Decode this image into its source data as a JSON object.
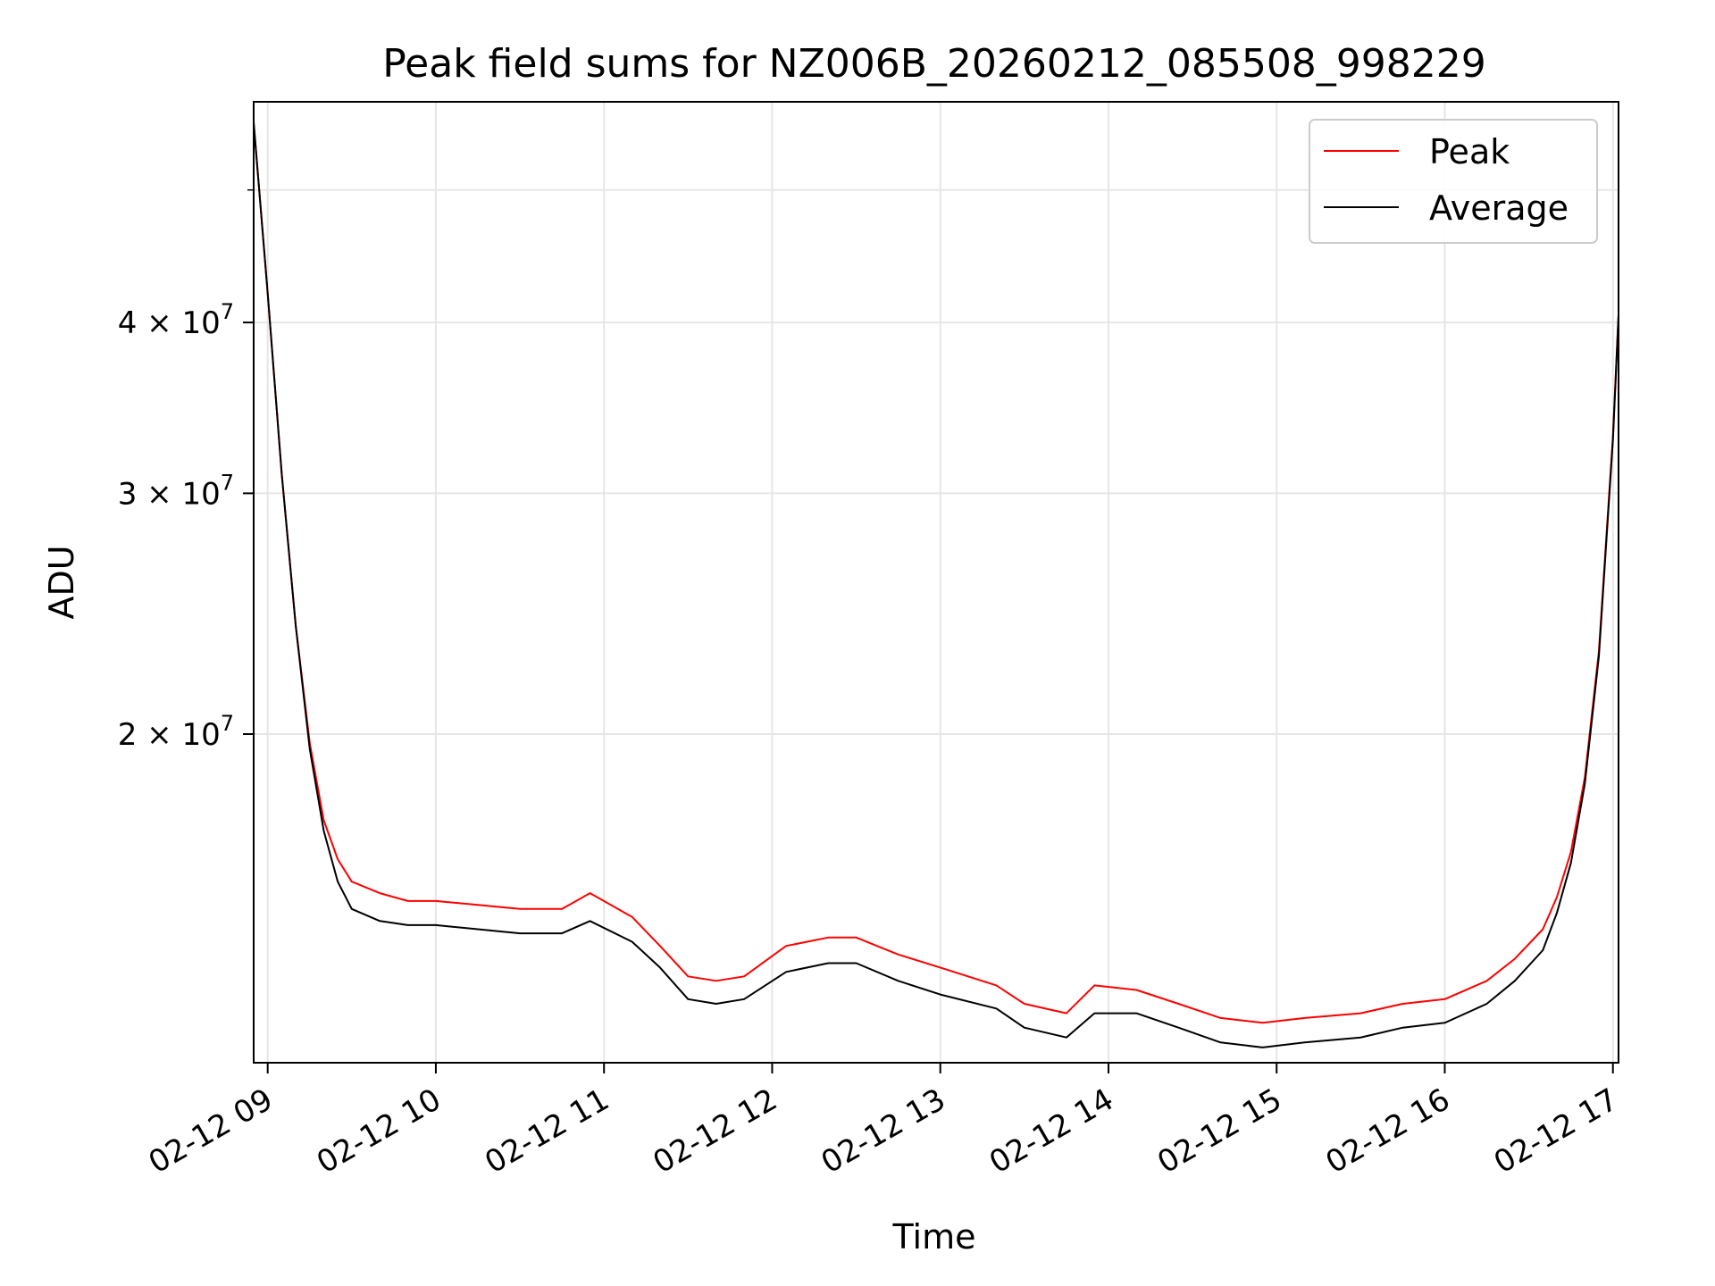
{
  "chart_data": {
    "type": "line",
    "title": "Peak field sums for NZ006B_20260212_085508_998229",
    "xlabel": "Time",
    "ylabel": "ADU",
    "x_type": "datetime",
    "xlim": [
      "2026-02-12 08:55",
      "2026-02-12 17:02"
    ],
    "y_scale": "log",
    "ylim": [
      11500000,
      58000000
    ],
    "x_ticks": [
      {
        "value": "2026-02-12 09:00",
        "label": "02-12 09"
      },
      {
        "value": "2026-02-12 10:00",
        "label": "02-12 10"
      },
      {
        "value": "2026-02-12 11:00",
        "label": "02-12 11"
      },
      {
        "value": "2026-02-12 12:00",
        "label": "02-12 12"
      },
      {
        "value": "2026-02-12 13:00",
        "label": "02-12 13"
      },
      {
        "value": "2026-02-12 14:00",
        "label": "02-12 14"
      },
      {
        "value": "2026-02-12 15:00",
        "label": "02-12 15"
      },
      {
        "value": "2026-02-12 16:00",
        "label": "02-12 16"
      },
      {
        "value": "2026-02-12 17:00",
        "label": "02-12 17"
      }
    ],
    "y_ticks": [
      {
        "value": 20000000,
        "mantissa": "2",
        "base": "10",
        "exp": "7"
      },
      {
        "value": 30000000,
        "mantissa": "3",
        "base": "10",
        "exp": "7"
      },
      {
        "value": 40000000,
        "mantissa": "4",
        "base": "10",
        "exp": "7"
      }
    ],
    "y_minor_ticks": [
      50000000
    ],
    "grid": true,
    "legend_position": "top-right",
    "series": [
      {
        "name": "Peak",
        "color": "#ff0000",
        "x": [
          "2026-02-12 08:55",
          "2026-02-12 09:00",
          "2026-02-12 09:05",
          "2026-02-12 09:10",
          "2026-02-12 09:15",
          "2026-02-12 09:20",
          "2026-02-12 09:25",
          "2026-02-12 09:30",
          "2026-02-12 09:40",
          "2026-02-12 09:50",
          "2026-02-12 10:00",
          "2026-02-12 10:15",
          "2026-02-12 10:30",
          "2026-02-12 10:45",
          "2026-02-12 10:55",
          "2026-02-12 11:10",
          "2026-02-12 11:20",
          "2026-02-12 11:30",
          "2026-02-12 11:40",
          "2026-02-12 11:50",
          "2026-02-12 12:05",
          "2026-02-12 12:20",
          "2026-02-12 12:30",
          "2026-02-12 12:45",
          "2026-02-12 13:00",
          "2026-02-12 13:20",
          "2026-02-12 13:30",
          "2026-02-12 13:45",
          "2026-02-12 13:55",
          "2026-02-12 14:10",
          "2026-02-12 14:25",
          "2026-02-12 14:40",
          "2026-02-12 14:55",
          "2026-02-12 15:10",
          "2026-02-12 15:30",
          "2026-02-12 15:45",
          "2026-02-12 16:00",
          "2026-02-12 16:15",
          "2026-02-12 16:25",
          "2026-02-12 16:35",
          "2026-02-12 16:40",
          "2026-02-12 16:45",
          "2026-02-12 16:50",
          "2026-02-12 16:55",
          "2026-02-12 17:00",
          "2026-02-12 17:02"
        ],
        "y": [
          56000000,
          42000000,
          31000000,
          24000000,
          19700000,
          17300000,
          16200000,
          15600000,
          15300000,
          15100000,
          15100000,
          15000000,
          14900000,
          14900000,
          15300000,
          14700000,
          14000000,
          13300000,
          13200000,
          13300000,
          14000000,
          14200000,
          14200000,
          13800000,
          13500000,
          13100000,
          12700000,
          12500000,
          13100000,
          13000000,
          12700000,
          12400000,
          12300000,
          12400000,
          12500000,
          12700000,
          12800000,
          13200000,
          13700000,
          14400000,
          15200000,
          16400000,
          18600000,
          23000000,
          33000000,
          40500000
        ]
      },
      {
        "name": "Average",
        "color": "#000000",
        "x": [
          "2026-02-12 08:55",
          "2026-02-12 09:00",
          "2026-02-12 09:05",
          "2026-02-12 09:10",
          "2026-02-12 09:15",
          "2026-02-12 09:20",
          "2026-02-12 09:25",
          "2026-02-12 09:30",
          "2026-02-12 09:40",
          "2026-02-12 09:50",
          "2026-02-12 10:00",
          "2026-02-12 10:15",
          "2026-02-12 10:30",
          "2026-02-12 10:45",
          "2026-02-12 10:55",
          "2026-02-12 11:10",
          "2026-02-12 11:20",
          "2026-02-12 11:30",
          "2026-02-12 11:40",
          "2026-02-12 11:50",
          "2026-02-12 12:05",
          "2026-02-12 12:20",
          "2026-02-12 12:30",
          "2026-02-12 12:45",
          "2026-02-12 13:00",
          "2026-02-12 13:20",
          "2026-02-12 13:30",
          "2026-02-12 13:45",
          "2026-02-12 13:55",
          "2026-02-12 14:10",
          "2026-02-12 14:25",
          "2026-02-12 14:40",
          "2026-02-12 14:55",
          "2026-02-12 15:10",
          "2026-02-12 15:30",
          "2026-02-12 15:45",
          "2026-02-12 16:00",
          "2026-02-12 16:15",
          "2026-02-12 16:25",
          "2026-02-12 16:35",
          "2026-02-12 16:40",
          "2026-02-12 16:45",
          "2026-02-12 16:50",
          "2026-02-12 16:55",
          "2026-02-12 17:00",
          "2026-02-12 17:02"
        ],
        "y": [
          56000000,
          42000000,
          31000000,
          24000000,
          19500000,
          17000000,
          15600000,
          14900000,
          14600000,
          14500000,
          14500000,
          14400000,
          14300000,
          14300000,
          14600000,
          14100000,
          13500000,
          12800000,
          12700000,
          12800000,
          13400000,
          13600000,
          13600000,
          13200000,
          12900000,
          12600000,
          12200000,
          12000000,
          12500000,
          12500000,
          12200000,
          11900000,
          11800000,
          11900000,
          12000000,
          12200000,
          12300000,
          12700000,
          13200000,
          13900000,
          14800000,
          16100000,
          18400000,
          22800000,
          32800000,
          40500000
        ]
      }
    ]
  }
}
